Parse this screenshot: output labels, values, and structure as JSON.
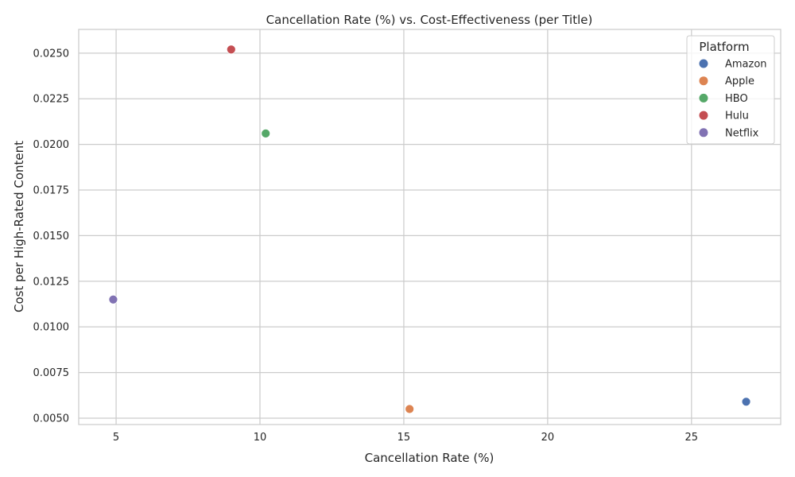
{
  "chart_data": {
    "type": "scatter",
    "title": "Cancellation Rate (%) vs. Cost-Effectiveness (per Title)",
    "xlabel": "Cancellation Rate (%)",
    "ylabel": "Cost per High-Rated Content",
    "xlim": [
      3.7,
      28.1
    ],
    "ylim": [
      0.00465,
      0.0263
    ],
    "x_ticks": [
      5,
      10,
      15,
      20,
      25
    ],
    "x_tick_labels": [
      "5",
      "10",
      "15",
      "20",
      "25"
    ],
    "y_ticks": [
      0.005,
      0.0075,
      0.01,
      0.0125,
      0.015,
      0.0175,
      0.02,
      0.0225,
      0.025
    ],
    "y_tick_labels": [
      "0.0050",
      "0.0075",
      "0.0100",
      "0.0125",
      "0.0150",
      "0.0175",
      "0.0200",
      "0.0225",
      "0.0250"
    ],
    "grid": true,
    "legend": {
      "title": "Platform",
      "placement": "top-right"
    },
    "series": [
      {
        "name": "Amazon",
        "color": "#4c72b0",
        "points": [
          {
            "x": 26.9,
            "y": 0.0059
          }
        ]
      },
      {
        "name": "Apple",
        "color": "#dd8452",
        "points": [
          {
            "x": 15.2,
            "y": 0.0055
          }
        ]
      },
      {
        "name": "HBO",
        "color": "#55a868",
        "points": [
          {
            "x": 10.2,
            "y": 0.0206
          }
        ]
      },
      {
        "name": "Hulu",
        "color": "#c44e52",
        "points": [
          {
            "x": 9.0,
            "y": 0.0252
          }
        ]
      },
      {
        "name": "Netflix",
        "color": "#8172b3",
        "points": [
          {
            "x": 4.9,
            "y": 0.0115
          }
        ]
      }
    ]
  }
}
